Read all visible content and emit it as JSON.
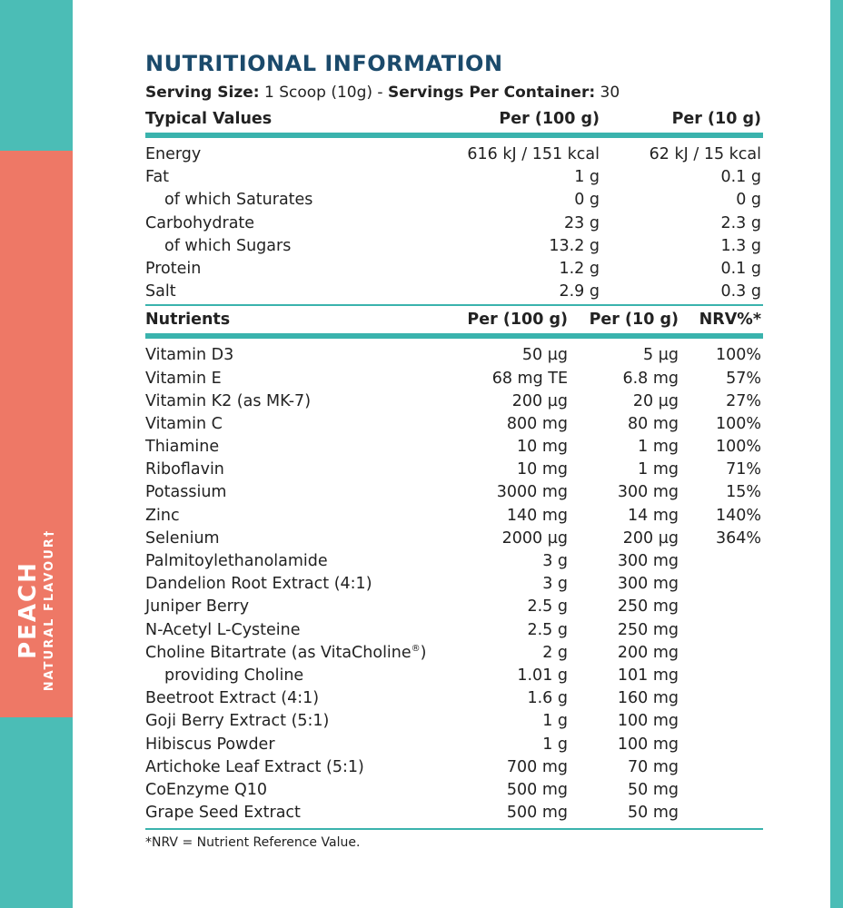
{
  "side_band": {
    "flavour": "PEACH",
    "subtitle": "NATURAL FLAVOUR†"
  },
  "title": "NUTRITIONAL INFORMATION",
  "serving": {
    "size_label": "Serving Size:",
    "size_value": "1 Scoop (10g)",
    "separator": "-",
    "servings_label": "Servings Per Container:",
    "servings_value": "30"
  },
  "typical": {
    "headers": [
      "Typical Values",
      "Per (100 g)",
      "Per (10 g)"
    ],
    "rows": [
      {
        "name": "Energy",
        "per100": "616 kJ / 151 kcal",
        "per10": "62 kJ / 15 kcal",
        "indent": false
      },
      {
        "name": "Fat",
        "per100": "1 g",
        "per10": "0.1 g",
        "indent": false
      },
      {
        "name": "of which Saturates",
        "per100": "0 g",
        "per10": "0 g",
        "indent": true
      },
      {
        "name": "Carbohydrate",
        "per100": "23 g",
        "per10": "2.3 g",
        "indent": false
      },
      {
        "name": "of which Sugars",
        "per100": "13.2 g",
        "per10": "1.3 g",
        "indent": true
      },
      {
        "name": "Protein",
        "per100": "1.2 g",
        "per10": "0.1 g",
        "indent": false
      },
      {
        "name": "Salt",
        "per100": "2.9 g",
        "per10": "0.3 g",
        "indent": false
      }
    ]
  },
  "nutrients": {
    "headers": [
      "Nutrients",
      "Per (100 g)",
      "Per (10 g)",
      "NRV%*"
    ],
    "rows": [
      {
        "name": "Vitamin D3",
        "per100": "50 µg",
        "per10": "5 µg",
        "nrv": "100%",
        "indent": false
      },
      {
        "name": "Vitamin E",
        "per100": "68 mg TE",
        "per10": "6.8 mg",
        "nrv": "57%",
        "indent": false
      },
      {
        "name": "Vitamin K2 (as MK-7)",
        "per100": "200 µg",
        "per10": "20 µg",
        "nrv": "27%",
        "indent": false
      },
      {
        "name": "Vitamin C",
        "per100": "800 mg",
        "per10": "80 mg",
        "nrv": "100%",
        "indent": false
      },
      {
        "name": "Thiamine",
        "per100": "10 mg",
        "per10": "1 mg",
        "nrv": "100%",
        "indent": false
      },
      {
        "name": "Riboflavin",
        "per100": "10 mg",
        "per10": "1 mg",
        "nrv": "71%",
        "indent": false
      },
      {
        "name": "Potassium",
        "per100": "3000 mg",
        "per10": "300 mg",
        "nrv": "15%",
        "indent": false
      },
      {
        "name": "Zinc",
        "per100": "140 mg",
        "per10": "14 mg",
        "nrv": "140%",
        "indent": false
      },
      {
        "name": "Selenium",
        "per100": "2000 µg",
        "per10": "200 µg",
        "nrv": "364%",
        "indent": false
      },
      {
        "name": "Palmitoylethanolamide",
        "per100": "3 g",
        "per10": "300 mg",
        "nrv": "",
        "indent": false
      },
      {
        "name": "Dandelion Root Extract (4:1)",
        "per100": "3 g",
        "per10": "300 mg",
        "nrv": "",
        "indent": false
      },
      {
        "name": "Juniper Berry",
        "per100": "2.5 g",
        "per10": "250 mg",
        "nrv": "",
        "indent": false
      },
      {
        "name": "N-Acetyl L-Cysteine",
        "per100": "2.5 g",
        "per10": "250 mg",
        "nrv": "",
        "indent": false
      },
      {
        "name": "Choline Bitartrate (as VitaCholine",
        "sup": "®",
        "name_suffix": ")",
        "per100": "2 g",
        "per10": "200 mg",
        "nrv": "",
        "indent": false
      },
      {
        "name": "providing Choline",
        "per100": "1.01 g",
        "per10": "101 mg",
        "nrv": "",
        "indent": true
      },
      {
        "name": "Beetroot Extract (4:1)",
        "per100": "1.6 g",
        "per10": "160 mg",
        "nrv": "",
        "indent": false
      },
      {
        "name": "Goji Berry Extract (5:1)",
        "per100": "1 g",
        "per10": "100 mg",
        "nrv": "",
        "indent": false
      },
      {
        "name": "Hibiscus Powder",
        "per100": "1 g",
        "per10": "100 mg",
        "nrv": "",
        "indent": false
      },
      {
        "name": "Artichoke Leaf Extract (5:1)",
        "per100": "700 mg",
        "per10": "70 mg",
        "nrv": "",
        "indent": false
      },
      {
        "name": "CoEnzyme Q10",
        "per100": "500 mg",
        "per10": "50 mg",
        "nrv": "",
        "indent": false
      },
      {
        "name": "Grape Seed Extract",
        "per100": "500 mg",
        "per10": "50 mg",
        "nrv": "",
        "indent": false
      }
    ]
  },
  "footnote": "*NRV = Nutrient Reference Value.",
  "colors": {
    "teal": "#4bbdb6",
    "coral": "#ee7866",
    "title_navy": "#1b4a6b",
    "rule_teal": "#3ab3ad"
  }
}
